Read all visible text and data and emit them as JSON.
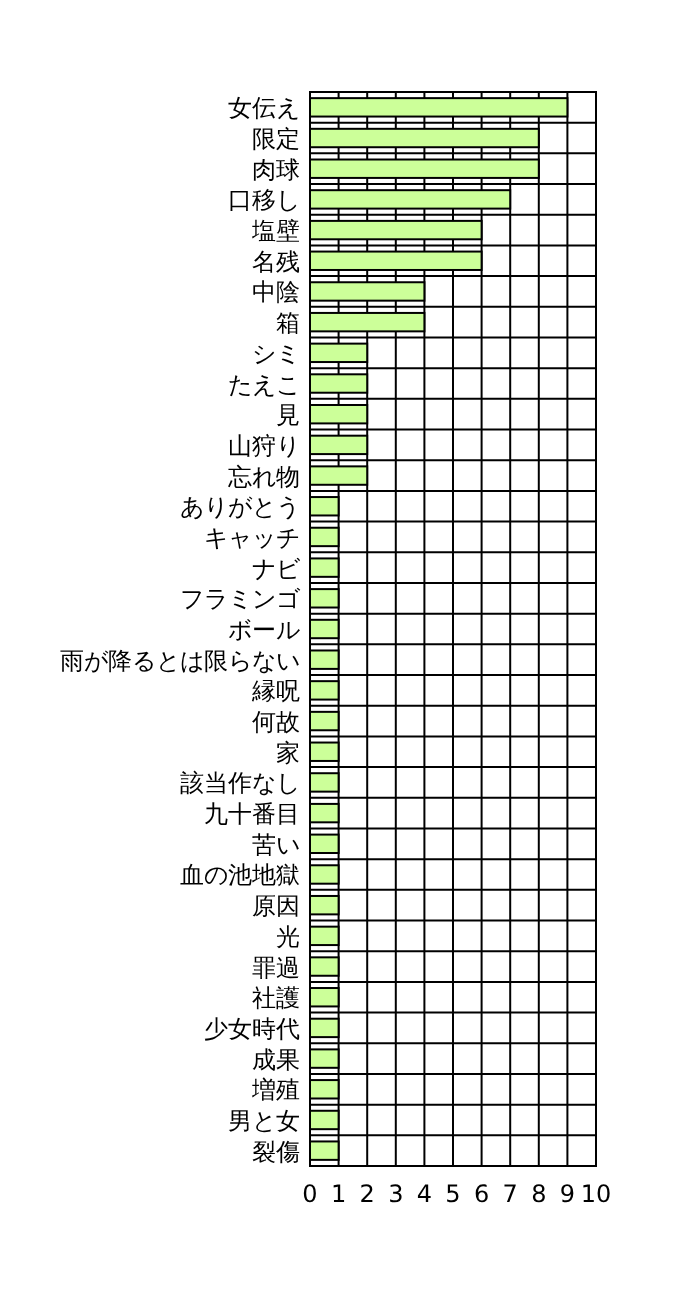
{
  "chart_data": {
    "type": "bar",
    "orientation": "horizontal",
    "color": "#ccff99",
    "grid": true,
    "categories": [
      "女伝え",
      "限定",
      "肉球",
      "口移し",
      "塩壁",
      "名残",
      "中陰",
      "箱",
      "シミ",
      "たえこ",
      "見",
      "山狩り",
      "忘れ物",
      "ありがとう",
      "キャッチ",
      "ナビ",
      "フラミンゴ",
      "ボール",
      "雨が降るとは限らない",
      "縁呪",
      "何故",
      "家",
      "該当作なし",
      "九十番目",
      "苦い",
      "血の池地獄",
      "原因",
      "光",
      "罪過",
      "社護",
      "少女時代",
      "成果",
      "増殖",
      "男と女",
      "裂傷"
    ],
    "values": [
      9,
      8,
      8,
      7,
      6,
      6,
      4,
      4,
      2,
      2,
      2,
      2,
      2,
      1,
      1,
      1,
      1,
      1,
      1,
      1,
      1,
      1,
      1,
      1,
      1,
      1,
      1,
      1,
      1,
      1,
      1,
      1,
      1,
      1,
      1
    ],
    "xlim": [
      0,
      10
    ],
    "xticks": [
      0,
      1,
      2,
      3,
      4,
      5,
      6,
      7,
      8,
      9,
      10
    ]
  }
}
